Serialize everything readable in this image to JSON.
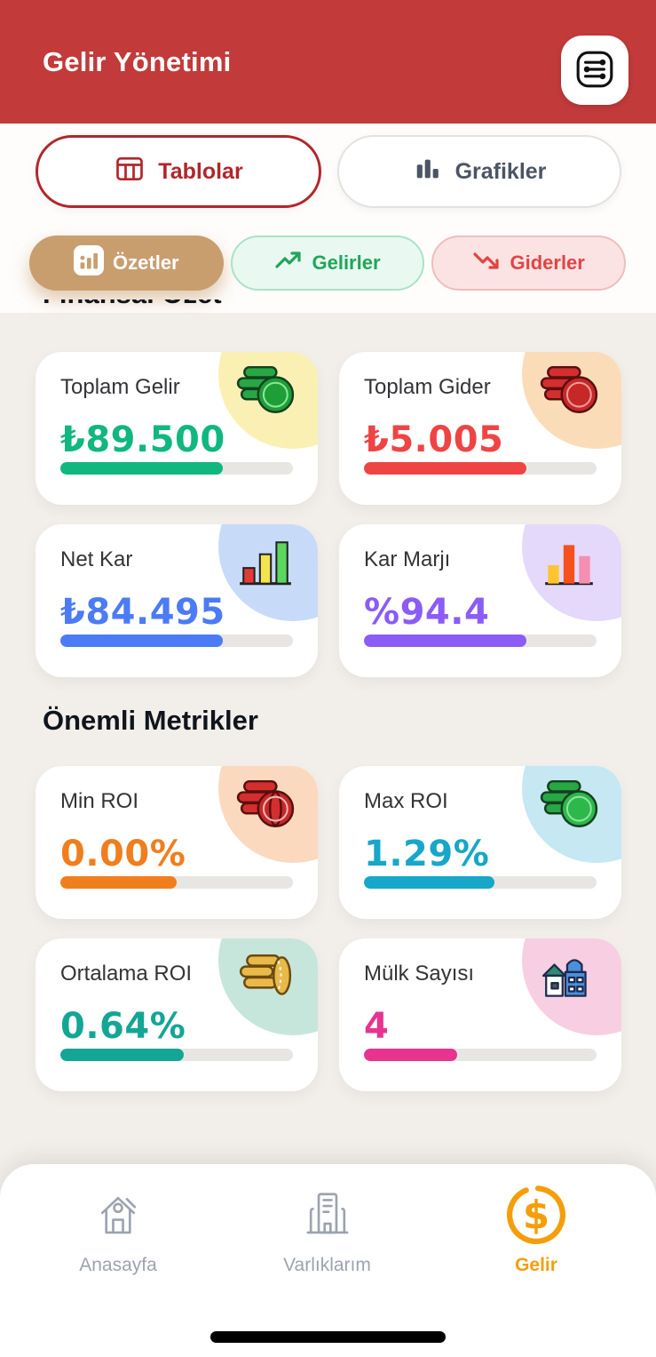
{
  "header": {
    "title": "Gelir Yönetimi",
    "bg_color": "#C23A3A"
  },
  "view_toggle": {
    "items": [
      {
        "label": "Tablolar",
        "icon": "table-icon",
        "active": true,
        "accent": "#B2262B"
      },
      {
        "label": "Grafikler",
        "icon": "bar-chart-icon",
        "active": false,
        "accent": "#4B5563"
      }
    ]
  },
  "filters": {
    "items": [
      {
        "label": "Özetler",
        "icon": "summary-chart-icon",
        "active": true,
        "bg": "#C99E6F",
        "text_color": "#FFFFFF"
      },
      {
        "label": "Gelirler",
        "icon": "trending-up-icon",
        "active": false,
        "bg": "#E9F8F0",
        "text_color": "#1FA65A",
        "border": "#ABE2C6"
      },
      {
        "label": "Giderler",
        "icon": "trending-down-icon",
        "active": false,
        "bg": "#FBE3E3",
        "text_color": "#E04444",
        "border": "#F2BCBC"
      }
    ]
  },
  "sections": [
    {
      "title": "Finansal Özet",
      "cards": [
        {
          "title": "Toplam Gelir",
          "value": "₺89.500",
          "accent": "#10B77F",
          "blob_color": "#FAF0B4",
          "icon": "coins-green-icon",
          "progress": 70
        },
        {
          "title": "Toplam Gider",
          "value": "₺5.005",
          "accent": "#EF4444",
          "blob_color": "#FBDCB9",
          "icon": "coins-red-icon",
          "progress": 70
        },
        {
          "title": "Net Kar",
          "value": "₺84.495",
          "accent": "#4B7BF5",
          "blob_color": "#C7DBF9",
          "icon": "bar-graph-icon",
          "progress": 70
        },
        {
          "title": "Kar Marjı",
          "value": "%94.4",
          "accent": "#8B5CF6",
          "blob_color": "#E4D9FA",
          "icon": "bar-graph-alt-icon",
          "progress": 70
        }
      ]
    },
    {
      "title": "Önemli Metrikler",
      "cards": [
        {
          "title": "Min ROI",
          "value": "0.00%",
          "accent": "#F07E1D",
          "blob_color": "#FAD9BE",
          "icon": "coins-red-icon",
          "progress": 50
        },
        {
          "title": "Max ROI",
          "value": "1.29%",
          "accent": "#16A7C9",
          "blob_color": "#C5E8F2",
          "icon": "coins-green-icon",
          "progress": 56
        },
        {
          "title": "Ortalama ROI",
          "value": "0.64%",
          "accent": "#14A695",
          "blob_color": "#C6E6DC",
          "icon": "coins-gold-icon",
          "progress": 53
        },
        {
          "title": "Mülk Sayısı",
          "value": "4",
          "accent": "#E8338F",
          "blob_color": "#F8CEE2",
          "icon": "houses-icon",
          "progress": 40
        }
      ]
    }
  ],
  "bottom_nav": {
    "active_color": "#F59E0B",
    "inactive_color": "#9CA3AF",
    "items": [
      {
        "label": "Anasayfa",
        "icon": "home-icon",
        "active": false
      },
      {
        "label": "Varlıklarım",
        "icon": "buildings-icon",
        "active": false
      },
      {
        "label": "Gelir",
        "icon": "dollar-circle-icon",
        "active": true
      }
    ]
  }
}
